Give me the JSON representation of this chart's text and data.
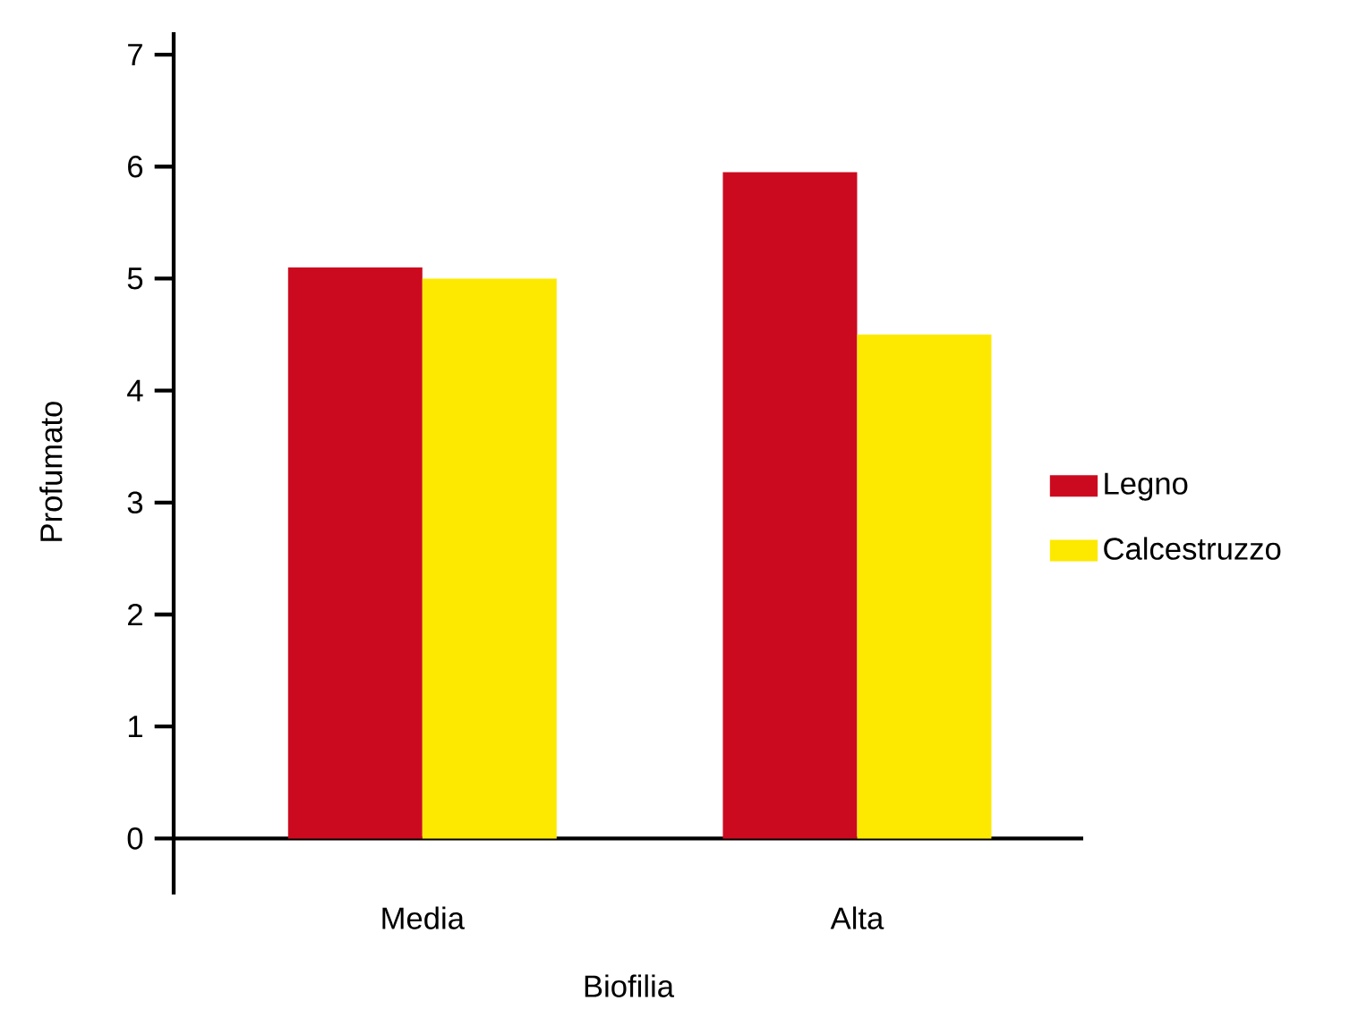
{
  "chart_data": {
    "type": "bar",
    "xlabel": "Biofilia",
    "ylabel": "Profumato",
    "categories": [
      "Media",
      "Alta"
    ],
    "series": [
      {
        "name": "Legno",
        "color": "#cc0a1f",
        "values": [
          5.1,
          5.95
        ]
      },
      {
        "name": "Calcestruzzo",
        "color": "#fde900",
        "values": [
          5.0,
          4.5
        ]
      }
    ],
    "ylim": [
      -0.5,
      7.2
    ],
    "yticks": [
      0,
      1,
      2,
      3,
      4,
      5,
      6,
      7
    ],
    "grid": false,
    "legend": "right"
  }
}
